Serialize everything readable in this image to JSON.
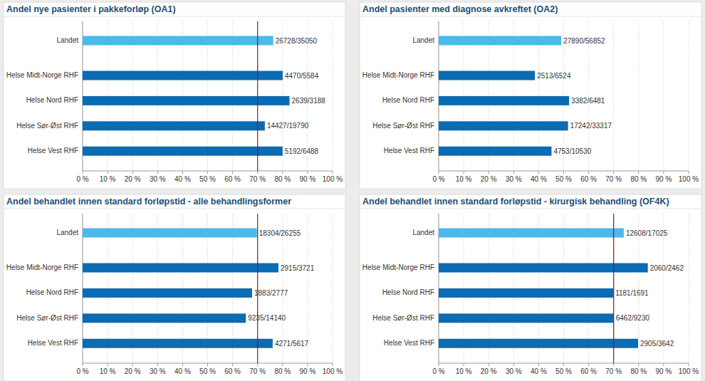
{
  "chart_data": [
    {
      "type": "bar",
      "orientation": "horizontal",
      "title": "Andel nye pasienter i pakkeforløp (OA1)",
      "categories": [
        "Landet",
        "Helse Midt-Norge RHF",
        "Helse Nord RHF",
        "Helse Sør-Øst RHF",
        "Helse Vest RHF"
      ],
      "values": [
        76.26,
        80.05,
        82.78,
        72.9,
        80.02
      ],
      "value_labels": [
        "26728/35050",
        "4470/5584",
        "2639/3188",
        "14427/19790",
        "5192/6488"
      ],
      "colors": [
        "#4db8ea",
        "#0b6bb3",
        "#0b6bb3",
        "#0b6bb3",
        "#0b6bb3"
      ],
      "reference_line": 70,
      "xlim": [
        0,
        100
      ],
      "xticks": [
        {
          "value": 0,
          "label": "0 %"
        },
        {
          "value": 10,
          "label": "10 %"
        },
        {
          "value": 20,
          "label": "20 %"
        },
        {
          "value": 30,
          "label": "30 %"
        },
        {
          "value": 40,
          "label": "40 %"
        },
        {
          "value": 50,
          "label": "50 %"
        },
        {
          "value": 60,
          "label": "60 %"
        },
        {
          "value": 70,
          "label": "70 %"
        },
        {
          "value": 80,
          "label": "80 %"
        },
        {
          "value": 90,
          "label": "90 %"
        },
        {
          "value": 100,
          "label": "100 %"
        }
      ],
      "grid": true,
      "data_labels": true
    },
    {
      "type": "bar",
      "orientation": "horizontal",
      "title": "Andel pasienter med diagnose avkreftet (OA2)",
      "categories": [
        "Landet",
        "Helse Midt-Norge RHF",
        "Helse Nord RHF",
        "Helse Sør-Øst RHF",
        "Helse Vest RHF"
      ],
      "values": [
        49.06,
        38.52,
        52.18,
        51.75,
        45.14
      ],
      "value_labels": [
        "27890/56852",
        "2513/6524",
        "3382/6481",
        "17242/33317",
        "4753/10530"
      ],
      "colors": [
        "#4db8ea",
        "#0b6bb3",
        "#0b6bb3",
        "#0b6bb3",
        "#0b6bb3"
      ],
      "xlim": [
        0,
        100
      ],
      "xticks": [
        {
          "value": 0,
          "label": "0 %"
        },
        {
          "value": 10,
          "label": "10 %"
        },
        {
          "value": 20,
          "label": "20 %"
        },
        {
          "value": 30,
          "label": "30 %"
        },
        {
          "value": 40,
          "label": "40 %"
        },
        {
          "value": 50,
          "label": "50 %"
        },
        {
          "value": 60,
          "label": "60 %"
        },
        {
          "value": 70,
          "label": "70 %"
        },
        {
          "value": 80,
          "label": "80 %"
        },
        {
          "value": 90,
          "label": "90 %"
        },
        {
          "value": 100,
          "label": "100 %"
        }
      ],
      "grid": true,
      "data_labels": true
    },
    {
      "type": "bar",
      "orientation": "horizontal",
      "title": "Andel behandlet innen standard forløpstid - alle behandlingsformer",
      "categories": [
        "Landet",
        "Helse Midt-Norge RHF",
        "Helse Nord RHF",
        "Helse Sør-Øst RHF",
        "Helse Vest RHF"
      ],
      "values": [
        69.72,
        78.34,
        67.81,
        65.31,
        76.04
      ],
      "value_labels": [
        "18304/26255",
        "2915/3721",
        "1883/2777",
        "9235/14140",
        "4271/5617"
      ],
      "colors": [
        "#4db8ea",
        "#0b6bb3",
        "#0b6bb3",
        "#0b6bb3",
        "#0b6bb3"
      ],
      "reference_line": 70,
      "xlim": [
        0,
        100
      ],
      "xticks": [
        {
          "value": 0,
          "label": "0 %"
        },
        {
          "value": 10,
          "label": "10 %"
        },
        {
          "value": 20,
          "label": "20 %"
        },
        {
          "value": 30,
          "label": "30 %"
        },
        {
          "value": 40,
          "label": "40 %"
        },
        {
          "value": 50,
          "label": "50 %"
        },
        {
          "value": 60,
          "label": "60 %"
        },
        {
          "value": 70,
          "label": "70 %"
        },
        {
          "value": 80,
          "label": "80 %"
        },
        {
          "value": 90,
          "label": "90 %"
        },
        {
          "value": 100,
          "label": "100 %"
        }
      ],
      "grid": true,
      "data_labels": true
    },
    {
      "type": "bar",
      "orientation": "horizontal",
      "title": "Andel behandlet innen standard forløpstid - kirurgisk behandling (OF4K)",
      "categories": [
        "Landet",
        "Helse Midt-Norge RHF",
        "Helse Nord RHF",
        "Helse Sør-Øst RHF",
        "Helse Vest RHF"
      ],
      "values": [
        74.06,
        83.67,
        69.84,
        70.01,
        79.76
      ],
      "value_labels": [
        "12608/17025",
        "2060/2462",
        "1181/1691",
        "6462/9230",
        "2905/3642"
      ],
      "colors": [
        "#4db8ea",
        "#0b6bb3",
        "#0b6bb3",
        "#0b6bb3",
        "#0b6bb3"
      ],
      "reference_line": 70,
      "xlim": [
        0,
        100
      ],
      "xticks": [
        {
          "value": 0,
          "label": "0 %"
        },
        {
          "value": 10,
          "label": "10 %"
        },
        {
          "value": 20,
          "label": "20 %"
        },
        {
          "value": 30,
          "label": "30 %"
        },
        {
          "value": 40,
          "label": "40 %"
        },
        {
          "value": 50,
          "label": "50 %"
        },
        {
          "value": 60,
          "label": "60 %"
        },
        {
          "value": 70,
          "label": "70 %"
        },
        {
          "value": 80,
          "label": "80 %"
        },
        {
          "value": 90,
          "label": "90 %"
        },
        {
          "value": 100,
          "label": "100 %"
        }
      ],
      "grid": true,
      "data_labels": true
    }
  ]
}
